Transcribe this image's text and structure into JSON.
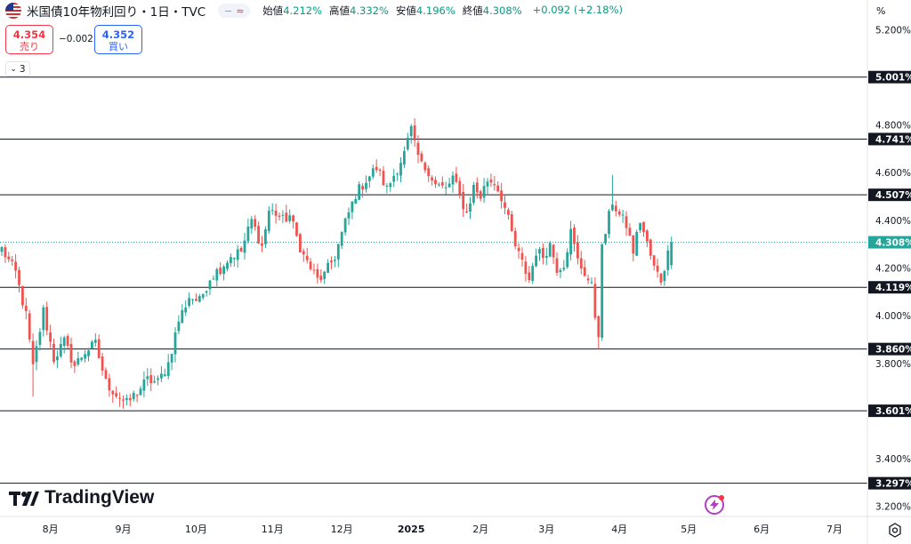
{
  "header": {
    "title": "米国債10年物利回り・1日・TVC",
    "open_label": "始値",
    "open_value": "4.212%",
    "high_label": "高値",
    "high_value": "4.332%",
    "low_label": "安値",
    "low_value": "4.196%",
    "close_label": "終値",
    "close_value": "4.308%",
    "change": "+0.092 (+2.18%)",
    "toggle_minus": "−",
    "toggle_wave": "≈"
  },
  "trade": {
    "sell_price": "4.354",
    "sell_label": "売り",
    "spread": "−0.002",
    "buy_price": "4.352",
    "buy_label": "買い"
  },
  "indicator_count": "3",
  "axis_unit": "%",
  "logo_text": "TradingView",
  "colors": {
    "up": "#089981",
    "up_candle": "#26a69a",
    "down": "#ef5350",
    "accent_sell": "#f23645",
    "accent_buy": "#2962ff"
  },
  "chart_data": {
    "type": "candlestick",
    "y_unit": "%",
    "ylim": [
      3.18,
      5.22
    ],
    "y_ticks": [
      "5.200%",
      "4.800%",
      "4.600%",
      "4.400%",
      "4.200%",
      "4.000%",
      "3.800%",
      "3.400%",
      "3.200%"
    ],
    "y_tick_values": [
      5.2,
      4.8,
      4.6,
      4.4,
      4.2,
      4.0,
      3.8,
      3.4,
      3.2
    ],
    "x_ticks": [
      {
        "label": "8月",
        "index": 14
      },
      {
        "label": "9月",
        "index": 35
      },
      {
        "label": "10月",
        "index": 56
      },
      {
        "label": "11月",
        "index": 78
      },
      {
        "label": "12月",
        "index": 98
      },
      {
        "label": "2025",
        "index": 118
      },
      {
        "label": "2月",
        "index": 138
      },
      {
        "label": "3月",
        "index": 157
      },
      {
        "label": "4月",
        "index": 178
      },
      {
        "label": "5月",
        "index": 198
      },
      {
        "label": "6月",
        "index": 219
      },
      {
        "label": "7月",
        "index": 240
      }
    ],
    "x_count": 250,
    "horizontal_lines": [
      {
        "value": 5.001,
        "label": "5.001%"
      },
      {
        "value": 4.741,
        "label": "4.741%"
      },
      {
        "value": 4.507,
        "label": "4.507%"
      },
      {
        "value": 4.119,
        "label": "4.119%"
      },
      {
        "value": 3.86,
        "label": "3.860%"
      },
      {
        "value": 3.601,
        "label": "3.601%"
      },
      {
        "value": 3.297,
        "label": "3.297%"
      }
    ],
    "current_price": {
      "value": 4.308,
      "label": "4.308%"
    },
    "close_path": [
      [
        0,
        4.28
      ],
      [
        4,
        4.18
      ],
      [
        7,
        4.0
      ],
      [
        9,
        3.78
      ],
      [
        12,
        4.02
      ],
      [
        15,
        3.82
      ],
      [
        18,
        3.89
      ],
      [
        21,
        3.79
      ],
      [
        24,
        3.85
      ],
      [
        27,
        3.88
      ],
      [
        30,
        3.72
      ],
      [
        33,
        3.67
      ],
      [
        36,
        3.63
      ],
      [
        39,
        3.68
      ],
      [
        42,
        3.73
      ],
      [
        45,
        3.72
      ],
      [
        48,
        3.8
      ],
      [
        51,
        3.98
      ],
      [
        54,
        4.08
      ],
      [
        57,
        4.06
      ],
      [
        60,
        4.16
      ],
      [
        63,
        4.2
      ],
      [
        66,
        4.25
      ],
      [
        69,
        4.27
      ],
      [
        72,
        4.4
      ],
      [
        75,
        4.29
      ],
      [
        77,
        4.44
      ],
      [
        79,
        4.43
      ],
      [
        81,
        4.4
      ],
      [
        83,
        4.42
      ],
      [
        85,
        4.33
      ],
      [
        87,
        4.25
      ],
      [
        89,
        4.2
      ],
      [
        91,
        4.15
      ],
      [
        93,
        4.17
      ],
      [
        96,
        4.25
      ],
      [
        99,
        4.39
      ],
      [
        102,
        4.51
      ],
      [
        105,
        4.57
      ],
      [
        108,
        4.62
      ],
      [
        111,
        4.53
      ],
      [
        114,
        4.62
      ],
      [
        116,
        4.68
      ],
      [
        118,
        4.78
      ],
      [
        119,
        4.71
      ],
      [
        121,
        4.63
      ],
      [
        123,
        4.61
      ],
      [
        125,
        4.55
      ],
      [
        128,
        4.53
      ],
      [
        130,
        4.58
      ],
      [
        132,
        4.5
      ],
      [
        134,
        4.43
      ],
      [
        136,
        4.54
      ],
      [
        138,
        4.5
      ],
      [
        140,
        4.57
      ],
      [
        142,
        4.56
      ],
      [
        144,
        4.5
      ],
      [
        146,
        4.4
      ],
      [
        148,
        4.29
      ],
      [
        150,
        4.22
      ],
      [
        152,
        4.15
      ],
      [
        154,
        4.27
      ],
      [
        156,
        4.25
      ],
      [
        158,
        4.3
      ],
      [
        160,
        4.2
      ],
      [
        162,
        4.22
      ],
      [
        164,
        4.35
      ],
      [
        166,
        4.23
      ],
      [
        168,
        4.18
      ],
      [
        170,
        4.12
      ],
      [
        171,
        4.0
      ],
      [
        172,
        3.93
      ],
      [
        173,
        4.28
      ],
      [
        174,
        4.35
      ],
      [
        176,
        4.48
      ],
      [
        178,
        4.42
      ],
      [
        180,
        4.38
      ],
      [
        182,
        4.27
      ],
      [
        184,
        4.4
      ],
      [
        186,
        4.3
      ],
      [
        188,
        4.2
      ],
      [
        190,
        4.15
      ],
      [
        192,
        4.26
      ],
      [
        193,
        4.31
      ]
    ],
    "last_bar": {
      "open": 4.212,
      "high": 4.332,
      "low": 4.196,
      "close": 4.308
    }
  }
}
